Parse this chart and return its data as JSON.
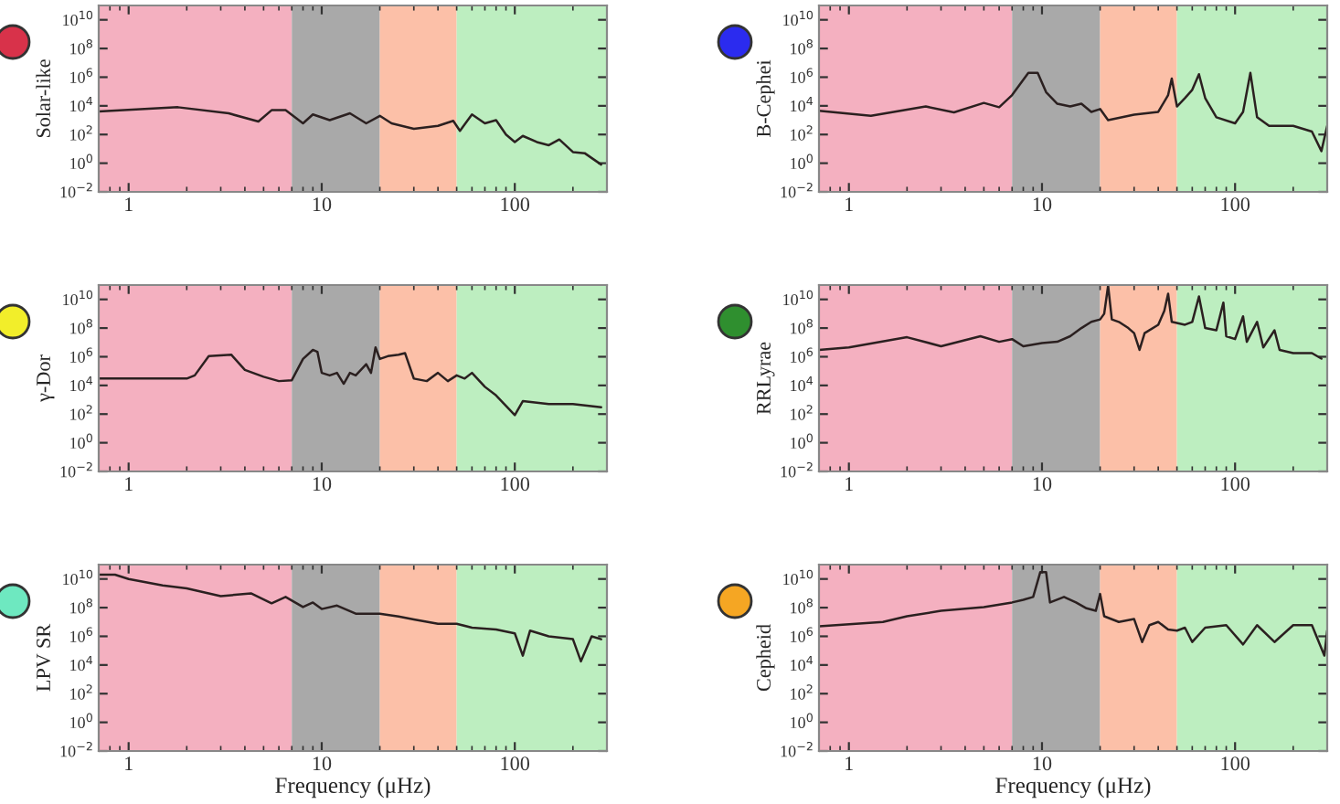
{
  "chart_data": [
    {
      "type": "line",
      "ylabel": "Solar-like",
      "log": "xy",
      "grid": false,
      "legend": false,
      "xlim": [
        0.7,
        300
      ],
      "xticks": [
        1,
        10,
        100
      ],
      "ylim": [
        0.01,
        100000000000.0
      ],
      "yticks": [
        {
          "value": 0.01,
          "label": "10$^{−2}$"
        },
        {
          "value": 1,
          "label": "10$^{0}$"
        },
        {
          "value": 100,
          "label": "10$^{2}$"
        },
        {
          "value": 10000,
          "label": "10$^{4}$"
        },
        {
          "value": 1000000,
          "label": "10$^{6}$"
        },
        {
          "value": 100000000,
          "label": "10$^{8}$"
        },
        {
          "value": 10000000000,
          "label": "10$^{10}$"
        }
      ],
      "bands": [
        {
          "axis": "x",
          "from": 0.7,
          "to": 7,
          "color": "#f4b0c0"
        },
        {
          "axis": "x",
          "from": 7,
          "to": 20,
          "color": "#a9a9a9"
        },
        {
          "axis": "x",
          "from": 20,
          "to": 50,
          "color": "#fcc0a8"
        },
        {
          "axis": "x",
          "from": 50,
          "to": 300,
          "color": "#bdeec0"
        }
      ],
      "series": [
        {
          "color": "#2b2020",
          "x": [
            0.7,
            1.8,
            3.3,
            4.7,
            5.5,
            6.5,
            8,
            9,
            11,
            14,
            17,
            20,
            23,
            30,
            40,
            48,
            52,
            60,
            70,
            80,
            90,
            100,
            110,
            130,
            150,
            170,
            200,
            230,
            280
          ],
          "values": [
            4000.0,
            8000.0,
            3000.0,
            800.0,
            5000.0,
            5000.0,
            600.0,
            2500.0,
            1000.0,
            3000.0,
            600.0,
            2000.0,
            600.0,
            250.0,
            400.0,
            900.0,
            180.0,
            2500.0,
            600.0,
            1000.0,
            100.0,
            30,
            80,
            30,
            18,
            45,
            6,
            5,
            0.8
          ]
        }
      ]
    },
    {
      "type": "line",
      "ylabel": "B-Cephei",
      "log": "xy",
      "grid": false,
      "legend": false,
      "xlim": [
        0.7,
        300
      ],
      "xticks": [
        1,
        10,
        100
      ],
      "ylim": [
        0.01,
        100000000000.0
      ],
      "yticks": [
        {
          "value": 0.01,
          "label": "10$^{−2}$"
        },
        {
          "value": 1,
          "label": "10$^{0}$"
        },
        {
          "value": 100,
          "label": "10$^{2}$"
        },
        {
          "value": 10000,
          "label": "10$^{4}$"
        },
        {
          "value": 1000000,
          "label": "10$^{6}$"
        },
        {
          "value": 100000000,
          "label": "10$^{8}$"
        },
        {
          "value": 10000000000,
          "label": "10$^{10}$"
        }
      ],
      "bands": [
        {
          "axis": "x",
          "from": 0.7,
          "to": 7,
          "color": "#f4b0c0"
        },
        {
          "axis": "x",
          "from": 7,
          "to": 20,
          "color": "#a9a9a9"
        },
        {
          "axis": "x",
          "from": 20,
          "to": 50,
          "color": "#fcc0a8"
        },
        {
          "axis": "x",
          "from": 50,
          "to": 300,
          "color": "#bdeec0"
        }
      ],
      "series": [
        {
          "color": "#2b2020",
          "x": [
            0.7,
            1.3,
            2.5,
            3.5,
            5,
            6,
            7,
            8.5,
            9.5,
            10.5,
            12,
            14,
            16,
            18,
            20,
            22,
            30,
            40,
            45,
            47,
            50,
            55,
            60,
            65,
            70,
            80,
            100,
            110,
            120,
            130,
            150,
            200,
            250,
            280,
            300
          ],
          "values": [
            4500.0,
            2000.0,
            9000.0,
            3500.0,
            16000.0,
            8000.0,
            56000.0,
            2000000.0,
            2000000.0,
            90000.0,
            14000.0,
            9000.0,
            14000.0,
            3800.0,
            6000.0,
            1000.0,
            2400.0,
            3800.0,
            56000.0,
            800000.0,
            9000.0,
            35000.0,
            130000.0,
            1600000.0,
            35000.0,
            1600.0,
            600.0,
            3800.0,
            2000000.0,
            1600.0,
            400.0,
            400.0,
            160.0,
            7,
            400.0
          ]
        }
      ]
    },
    {
      "type": "line",
      "ylabel": "γ-Dor",
      "log": "xy",
      "grid": false,
      "legend": false,
      "xlim": [
        0.7,
        300
      ],
      "xticks": [
        1,
        10,
        100
      ],
      "ylim": [
        0.01,
        100000000000.0
      ],
      "yticks": [
        {
          "value": 0.01,
          "label": "10$^{−2}$"
        },
        {
          "value": 1,
          "label": "10$^{0}$"
        },
        {
          "value": 100,
          "label": "10$^{2}$"
        },
        {
          "value": 10000,
          "label": "10$^{4}$"
        },
        {
          "value": 1000000,
          "label": "10$^{6}$"
        },
        {
          "value": 100000000,
          "label": "10$^{8}$"
        },
        {
          "value": 10000000000,
          "label": "10$^{10}$"
        }
      ],
      "bands": [
        {
          "axis": "x",
          "from": 0.7,
          "to": 7,
          "color": "#f4b0c0"
        },
        {
          "axis": "x",
          "from": 7,
          "to": 20,
          "color": "#a9a9a9"
        },
        {
          "axis": "x",
          "from": 20,
          "to": 50,
          "color": "#fcc0a8"
        },
        {
          "axis": "x",
          "from": 50,
          "to": 300,
          "color": "#bdeec0"
        }
      ],
      "series": [
        {
          "color": "#2b2020",
          "x": [
            0.7,
            2,
            2.2,
            2.6,
            3.4,
            4,
            5,
            6,
            7,
            8,
            9,
            9.5,
            10,
            11,
            12,
            13,
            14,
            15,
            17,
            18,
            19,
            20,
            22,
            25,
            27,
            30,
            35,
            40,
            45,
            50,
            55,
            60,
            70,
            80,
            100,
            110,
            150,
            200,
            280
          ],
          "values": [
            30000.0,
            30000.0,
            50000.0,
            1100000.0,
            1400000.0,
            120000.0,
            40000.0,
            20000.0,
            23000.0,
            700000.0,
            3000000.0,
            2200000.0,
            75000.0,
            50000.0,
            75000.0,
            13000.0,
            75000.0,
            50000.0,
            300000.0,
            75000.0,
            4500000.0,
            700000.0,
            1100000.0,
            1400000.0,
            1800000.0,
            30000.0,
            20000.0,
            75000.0,
            20000.0,
            50000.0,
            30000.0,
            75000.0,
            8000.0,
            2000.0,
            85,
            800.0,
            500.0,
            500.0,
            300.0
          ]
        }
      ]
    },
    {
      "type": "line",
      "ylabel": "RRLyrae",
      "log": "xy",
      "grid": false,
      "legend": false,
      "xlim": [
        0.7,
        300
      ],
      "xticks": [
        1,
        10,
        100
      ],
      "ylim": [
        0.01,
        100000000000.0
      ],
      "yticks": [
        {
          "value": 0.01,
          "label": "10$^{−2}$"
        },
        {
          "value": 1,
          "label": "10$^{0}$"
        },
        {
          "value": 100,
          "label": "10$^{2}$"
        },
        {
          "value": 10000,
          "label": "10$^{4}$"
        },
        {
          "value": 1000000,
          "label": "10$^{6}$"
        },
        {
          "value": 100000000,
          "label": "10$^{8}$"
        },
        {
          "value": 10000000000,
          "label": "10$^{10}$"
        }
      ],
      "bands": [
        {
          "axis": "x",
          "from": 0.7,
          "to": 7,
          "color": "#f4b0c0"
        },
        {
          "axis": "x",
          "from": 7,
          "to": 20,
          "color": "#a9a9a9"
        },
        {
          "axis": "x",
          "from": 20,
          "to": 50,
          "color": "#fcc0a8"
        },
        {
          "axis": "x",
          "from": 50,
          "to": 300,
          "color": "#bdeec0"
        }
      ],
      "series": [
        {
          "color": "#2b2020",
          "x": [
            0.7,
            1,
            2,
            3,
            4.8,
            6,
            7,
            8,
            10,
            12,
            14,
            16,
            18,
            20,
            21,
            22,
            23,
            25,
            28,
            30,
            32,
            34,
            40,
            43,
            45,
            47,
            55,
            60,
            65,
            70,
            80,
            87,
            90,
            100,
            110,
            115,
            130,
            140,
            160,
            170,
            200,
            250,
            280
          ],
          "values": [
            3000000.0,
            4500000.0,
            23000000.0,
            5400000.0,
            27000000.0,
            11000000.0,
            17000000.0,
            5400000.0,
            9000000.0,
            11000000.0,
            27000000.0,
            100000000.0,
            270000000.0,
            400000000.0,
            1000000000.0,
            90000000000.0,
            400000000.0,
            270000000.0,
            100000000.0,
            44000000.0,
            3000000.0,
            44000000.0,
            170000000.0,
            1600000000.0,
            25000000000.0,
            270000000.0,
            170000000.0,
            270000000.0,
            16000000000.0,
            100000000.0,
            70000000.0,
            6000000000.0,
            27000000.0,
            17000000.0,
            660000000.0,
            11000000.0,
            270000000.0,
            4500000.0,
            70000000.0,
            3000000.0,
            1800000.0,
            1800000.0,
            740000.0
          ]
        }
      ]
    },
    {
      "type": "line",
      "ylabel": "LPV SR",
      "xlabel": "Frequency (μHz)",
      "log": "xy",
      "grid": false,
      "legend": false,
      "xlim": [
        0.7,
        300
      ],
      "xticks": [
        1,
        10,
        100
      ],
      "ylim": [
        0.01,
        100000000000.0
      ],
      "yticks": [
        {
          "value": 0.01,
          "label": "10$^{−2}$"
        },
        {
          "value": 1,
          "label": "10$^{0}$"
        },
        {
          "value": 100,
          "label": "10$^{2}$"
        },
        {
          "value": 10000,
          "label": "10$^{4}$"
        },
        {
          "value": 1000000,
          "label": "10$^{6}$"
        },
        {
          "value": 100000000,
          "label": "10$^{8}$"
        },
        {
          "value": 10000000000,
          "label": "10$^{10}$"
        }
      ],
      "bands": [
        {
          "axis": "x",
          "from": 0.7,
          "to": 7,
          "color": "#f4b0c0"
        },
        {
          "axis": "x",
          "from": 7,
          "to": 20,
          "color": "#a9a9a9"
        },
        {
          "axis": "x",
          "from": 20,
          "to": 50,
          "color": "#fcc0a8"
        },
        {
          "axis": "x",
          "from": 50,
          "to": 300,
          "color": "#bdeec0"
        }
      ],
      "series": [
        {
          "color": "#2b2020",
          "x": [
            0.7,
            0.85,
            1,
            1.5,
            2,
            3,
            4.3,
            5.5,
            6.5,
            8,
            9,
            10,
            12,
            15,
            20,
            25,
            30,
            40,
            50,
            60,
            80,
            100,
            110,
            120,
            150,
            200,
            220,
            250,
            280
          ],
          "values": [
            20000000000.0,
            20000000000.0,
            10000000000.0,
            3500000000.0,
            2200000000.0,
            630000000.0,
            1000000000.0,
            200000000.0,
            560000000.0,
            110000000.0,
            230000000.0,
            80000000.0,
            140000000.0,
            38000000.0,
            38000000.0,
            24000000.0,
            15000000.0,
            7500000.0,
            7500000.0,
            4000000.0,
            3000000.0,
            1600000.0,
            45000.0,
            2500000.0,
            1000000.0,
            630000.0,
            18000.0,
            1000000.0,
            630000.0
          ]
        }
      ]
    },
    {
      "type": "line",
      "ylabel": "Cepheid",
      "xlabel": "Frequency (μHz)",
      "log": "xy",
      "grid": false,
      "legend": false,
      "xlim": [
        0.7,
        300
      ],
      "xticks": [
        1,
        10,
        100
      ],
      "ylim": [
        0.01,
        100000000000.0
      ],
      "yticks": [
        {
          "value": 0.01,
          "label": "10$^{−2}$"
        },
        {
          "value": 1,
          "label": "10$^{0}$"
        },
        {
          "value": 100,
          "label": "10$^{2}$"
        },
        {
          "value": 10000,
          "label": "10$^{4}$"
        },
        {
          "value": 1000000,
          "label": "10$^{6}$"
        },
        {
          "value": 100000000,
          "label": "10$^{8}$"
        },
        {
          "value": 10000000000,
          "label": "10$^{10}$"
        }
      ],
      "bands": [
        {
          "axis": "x",
          "from": 0.7,
          "to": 7,
          "color": "#f4b0c0"
        },
        {
          "axis": "x",
          "from": 7,
          "to": 20,
          "color": "#a9a9a9"
        },
        {
          "axis": "x",
          "from": 20,
          "to": 50,
          "color": "#fcc0a8"
        },
        {
          "axis": "x",
          "from": 50,
          "to": 300,
          "color": "#bdeec0"
        }
      ],
      "series": [
        {
          "color": "#2b2020",
          "x": [
            0.7,
            1.5,
            2,
            3,
            5,
            7,
            8,
            9,
            9.8,
            10.5,
            11,
            13,
            15,
            17,
            19,
            20,
            21,
            25,
            30,
            33,
            36,
            40,
            45,
            50,
            55,
            60,
            70,
            90,
            110,
            130,
            160,
            200,
            250,
            290,
            300
          ],
          "values": [
            5000000.0,
            10000000.0,
            25000000.0,
            60000000.0,
            110000000.0,
            230000000.0,
            350000000.0,
            560000000.0,
            30000000000.0,
            30000000000.0,
            230000000.0,
            560000000.0,
            230000000.0,
            90000000.0,
            60000000.0,
            900000000.0,
            25000000.0,
            10000000.0,
            16000000.0,
            400000.0,
            6000000.0,
            10000000.0,
            3000000.0,
            2500000.0,
            4000000.0,
            400000.0,
            4000000.0,
            6000000.0,
            270000.0,
            6000000.0,
            400000.0,
            6000000.0,
            6000000.0,
            45000.0,
            2500000.0
          ]
        }
      ]
    }
  ]
}
